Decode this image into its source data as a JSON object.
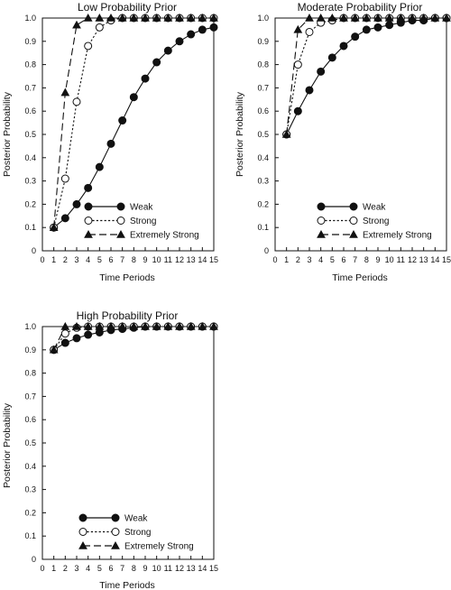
{
  "chart_data": [
    {
      "type": "line",
      "title": "Low Probability Prior",
      "xlabel": "Time Periods",
      "ylabel": "Posterior Probability",
      "xlim": [
        0,
        15
      ],
      "ylim": [
        0,
        1.0
      ],
      "x_ticks": [
        "0",
        "1",
        "2",
        "3",
        "4",
        "5",
        "6",
        "7",
        "8",
        "9",
        "10",
        "11",
        "12",
        "13",
        "14",
        "15"
      ],
      "y_ticks": [
        "0",
        "0.1",
        "0.2",
        "0.3",
        "0.4",
        "0.5",
        "0.6",
        "0.7",
        "0.8",
        "0.9",
        "1.0"
      ],
      "legend_position": "bottom-right",
      "series": [
        {
          "name": "Weak",
          "style": "solid",
          "marker": "filled-circle",
          "x": [
            1,
            2,
            3,
            4,
            5,
            6,
            7,
            8,
            9,
            10,
            11,
            12,
            13,
            14,
            15
          ],
          "y": [
            0.1,
            0.14,
            0.2,
            0.27,
            0.36,
            0.46,
            0.56,
            0.66,
            0.74,
            0.81,
            0.86,
            0.9,
            0.93,
            0.95,
            0.96
          ]
        },
        {
          "name": "Strong",
          "style": "dotted",
          "marker": "open-circle",
          "x": [
            1,
            2,
            3,
            4,
            5,
            6,
            7,
            8,
            9,
            10,
            11,
            12,
            13,
            14,
            15
          ],
          "y": [
            0.1,
            0.31,
            0.64,
            0.88,
            0.96,
            0.99,
            1.0,
            1.0,
            1.0,
            1.0,
            1.0,
            1.0,
            1.0,
            1.0,
            1.0
          ]
        },
        {
          "name": "Extremely Strong",
          "style": "dashed",
          "marker": "filled-triangle",
          "x": [
            1,
            2,
            3,
            4,
            5,
            6,
            7,
            8,
            9,
            10,
            11,
            12,
            13,
            14,
            15
          ],
          "y": [
            0.1,
            0.68,
            0.97,
            1.0,
            1.0,
            1.0,
            1.0,
            1.0,
            1.0,
            1.0,
            1.0,
            1.0,
            1.0,
            1.0,
            1.0
          ]
        }
      ]
    },
    {
      "type": "line",
      "title": "Moderate Probability Prior",
      "xlabel": "Time Periods",
      "ylabel": "Posterior Probability",
      "xlim": [
        0,
        15
      ],
      "ylim": [
        0,
        1.0
      ],
      "x_ticks": [
        "0",
        "1",
        "2",
        "3",
        "4",
        "5",
        "6",
        "7",
        "8",
        "9",
        "10",
        "11",
        "12",
        "13",
        "14",
        "15"
      ],
      "y_ticks": [
        "0",
        "0.1",
        "0.2",
        "0.3",
        "0.4",
        "0.5",
        "0.6",
        "0.7",
        "0.8",
        "0.9",
        "1.0"
      ],
      "legend_position": "bottom-right",
      "series": [
        {
          "name": "Weak",
          "style": "solid",
          "marker": "filled-circle",
          "x": [
            1,
            2,
            3,
            4,
            5,
            6,
            7,
            8,
            9,
            10,
            11,
            12,
            13,
            14,
            15
          ],
          "y": [
            0.5,
            0.6,
            0.69,
            0.77,
            0.83,
            0.88,
            0.92,
            0.95,
            0.96,
            0.97,
            0.98,
            0.99,
            0.99,
            1.0,
            1.0
          ]
        },
        {
          "name": "Strong",
          "style": "dotted",
          "marker": "open-circle",
          "x": [
            1,
            2,
            3,
            4,
            5,
            6,
            7,
            8,
            9,
            10,
            11,
            12,
            13,
            14,
            15
          ],
          "y": [
            0.5,
            0.8,
            0.94,
            0.98,
            0.99,
            1.0,
            1.0,
            1.0,
            1.0,
            1.0,
            1.0,
            1.0,
            1.0,
            1.0,
            1.0
          ]
        },
        {
          "name": "Extremely Strong",
          "style": "dashed",
          "marker": "filled-triangle",
          "x": [
            1,
            2,
            3,
            4,
            5,
            6,
            7,
            8,
            9,
            10,
            11,
            12,
            13,
            14,
            15
          ],
          "y": [
            0.5,
            0.95,
            1.0,
            1.0,
            1.0,
            1.0,
            1.0,
            1.0,
            1.0,
            1.0,
            1.0,
            1.0,
            1.0,
            1.0,
            1.0
          ]
        }
      ]
    },
    {
      "type": "line",
      "title": "High Probability Prior",
      "xlabel": "Time Periods",
      "ylabel": "Posterior Probability",
      "xlim": [
        0,
        15
      ],
      "ylim": [
        0,
        1.0
      ],
      "x_ticks": [
        "0",
        "1",
        "2",
        "3",
        "4",
        "5",
        "6",
        "7",
        "8",
        "9",
        "10",
        "11",
        "12",
        "13",
        "14",
        "15"
      ],
      "y_ticks": [
        "0",
        "0.1",
        "0.2",
        "0.3",
        "0.4",
        "0.5",
        "0.6",
        "0.7",
        "0.8",
        "0.9",
        "1.0"
      ],
      "legend_position": "bottom-left",
      "series": [
        {
          "name": "Weak",
          "style": "solid",
          "marker": "filled-circle",
          "x": [
            1,
            2,
            3,
            4,
            5,
            6,
            7,
            8,
            9,
            10,
            11,
            12,
            13,
            14,
            15
          ],
          "y": [
            0.9,
            0.93,
            0.95,
            0.965,
            0.975,
            0.985,
            0.99,
            0.995,
            1.0,
            1.0,
            1.0,
            1.0,
            1.0,
            1.0,
            1.0
          ]
        },
        {
          "name": "Strong",
          "style": "dotted",
          "marker": "open-circle",
          "x": [
            1,
            2,
            3,
            4,
            5,
            6,
            7,
            8,
            9,
            10,
            11,
            12,
            13,
            14,
            15
          ],
          "y": [
            0.9,
            0.97,
            0.995,
            1.0,
            1.0,
            1.0,
            1.0,
            1.0,
            1.0,
            1.0,
            1.0,
            1.0,
            1.0,
            1.0,
            1.0
          ]
        },
        {
          "name": "Extremely Strong",
          "style": "dashed",
          "marker": "filled-triangle",
          "x": [
            1,
            2,
            3,
            4,
            5,
            6,
            7,
            8,
            9,
            10,
            11,
            12,
            13,
            14,
            15
          ],
          "y": [
            0.9,
            1.0,
            1.0,
            1.0,
            1.0,
            1.0,
            1.0,
            1.0,
            1.0,
            1.0,
            1.0,
            1.0,
            1.0,
            1.0,
            1.0
          ]
        }
      ]
    }
  ]
}
